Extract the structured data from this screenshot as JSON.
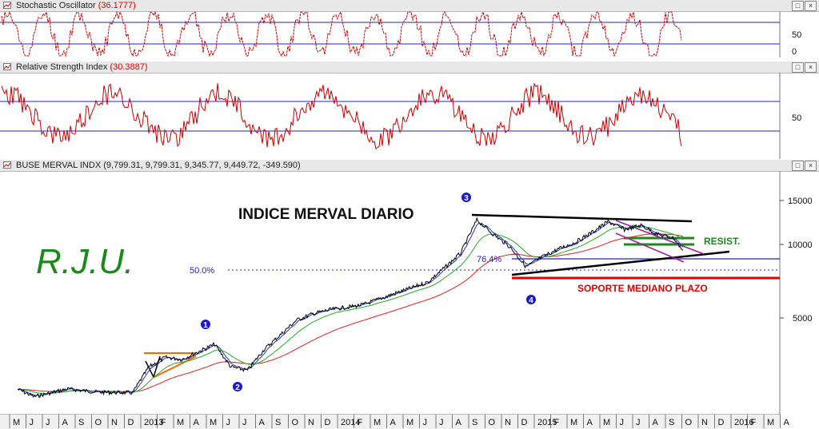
{
  "panes": {
    "stoch": {
      "name": "Stochastic Oscillator",
      "value": "(36.1777)"
    },
    "rsi": {
      "name": "Relative Strength Index",
      "value": "(30.3887)"
    },
    "price": {
      "name": "BUSE MERVAL INDX",
      "value": "(9,799.31, 9,799.31, 9,345.77, 9,449.72, -349.590)"
    }
  },
  "window_buttons": [
    "□",
    "×"
  ],
  "colors": {
    "price": "#000000",
    "ema_fast": "#2233cc",
    "ma_mid": "#22aa22",
    "ma_slow": "#e02020",
    "oscillator": "#cc0000",
    "guide": "#2222cc",
    "annot_red": "#e00000",
    "annot_green": "#1a8a1a",
    "annot_orange": "#ff6600",
    "annot_purple": "#a020a0"
  },
  "annotations": {
    "title": "INDICE MERVAL DIARIO",
    "brand": "R.J.U.",
    "fib50": "50.0%",
    "fib764": "76.4%",
    "soporte": "SOPORTE MEDIANO PLAZO",
    "resist": "RESIST.",
    "waves": [
      "1",
      "2",
      "3",
      "4"
    ]
  },
  "chart_data": [
    {
      "type": "line",
      "title": "Stochastic Oscillator",
      "y_ticks": [
        "50",
        "0"
      ],
      "ylim": [
        0,
        100
      ],
      "guides": [
        80,
        20
      ]
    },
    {
      "type": "line",
      "title": "Relative Strength Index",
      "y_ticks": [
        "50"
      ],
      "ylim": [
        20,
        90
      ],
      "guides": [
        70,
        30
      ]
    },
    {
      "type": "line",
      "title": "BUSE MERVAL INDX",
      "y_scale": "log",
      "y_ticks": [
        "15000",
        "10000",
        "5000"
      ],
      "ylim": [
        2700,
        17000
      ],
      "x_tick_labels": [
        "M",
        "J",
        "J",
        "A",
        "S",
        "O",
        "N",
        "D",
        "2013",
        "F",
        "M",
        "A",
        "M",
        "J",
        "J",
        "A",
        "S",
        "O",
        "N",
        "D",
        "2014",
        "F",
        "M",
        "A",
        "M",
        "J",
        "J",
        "A",
        "S",
        "O",
        "N",
        "D",
        "2015",
        "F",
        "M",
        "A",
        "M",
        "J",
        "J",
        "A",
        "S",
        "O",
        "N",
        "D",
        "2016",
        "F",
        "M",
        "A"
      ],
      "last_close": 9449.72,
      "price_keypoints": [
        {
          "x": "2012-05",
          "y": 2550
        },
        {
          "x": "2012-06",
          "y": 2380
        },
        {
          "x": "2012-08",
          "y": 2560
        },
        {
          "x": "2012-10",
          "y": 2480
        },
        {
          "x": "2012-12",
          "y": 2470
        },
        {
          "x": "2013-01",
          "y": 3150
        },
        {
          "x": "2013-02",
          "y": 3450
        },
        {
          "x": "2013-03",
          "y": 3380
        },
        {
          "x": "2013-05",
          "y": 3900
        },
        {
          "x": "2013-06",
          "y": 3150
        },
        {
          "x": "2013-07",
          "y": 3050
        },
        {
          "x": "2013-08",
          "y": 3700
        },
        {
          "x": "2013-10",
          "y": 4900
        },
        {
          "x": "2013-11",
          "y": 5200
        },
        {
          "x": "2013-12",
          "y": 5400
        },
        {
          "x": "2014-02",
          "y": 5650
        },
        {
          "x": "2014-04",
          "y": 6300
        },
        {
          "x": "2014-06",
          "y": 7000
        },
        {
          "x": "2014-07",
          "y": 8000
        },
        {
          "x": "2014-08",
          "y": 9200
        },
        {
          "x": "2014-09",
          "y": 12600
        },
        {
          "x": "2014-10",
          "y": 11000
        },
        {
          "x": "2014-11",
          "y": 9800
        },
        {
          "x": "2014-12",
          "y": 8100
        },
        {
          "x": "2015-01",
          "y": 8900
        },
        {
          "x": "2015-02",
          "y": 9600
        },
        {
          "x": "2015-03",
          "y": 10200
        },
        {
          "x": "2015-04",
          "y": 11200
        },
        {
          "x": "2015-05",
          "y": 12400
        },
        {
          "x": "2015-06",
          "y": 11500
        },
        {
          "x": "2015-07",
          "y": 12000
        },
        {
          "x": "2015-08",
          "y": 11000
        },
        {
          "x": "2015-09",
          "y": 10600
        },
        {
          "x": "2015-09-18",
          "y": 9449.72
        }
      ],
      "reference_lines": {
        "fib_50_level": 8200,
        "fib_764_level": 8900,
        "soporte_level": 7600,
        "resist_levels": [
          10100,
          10500
        ]
      }
    }
  ]
}
